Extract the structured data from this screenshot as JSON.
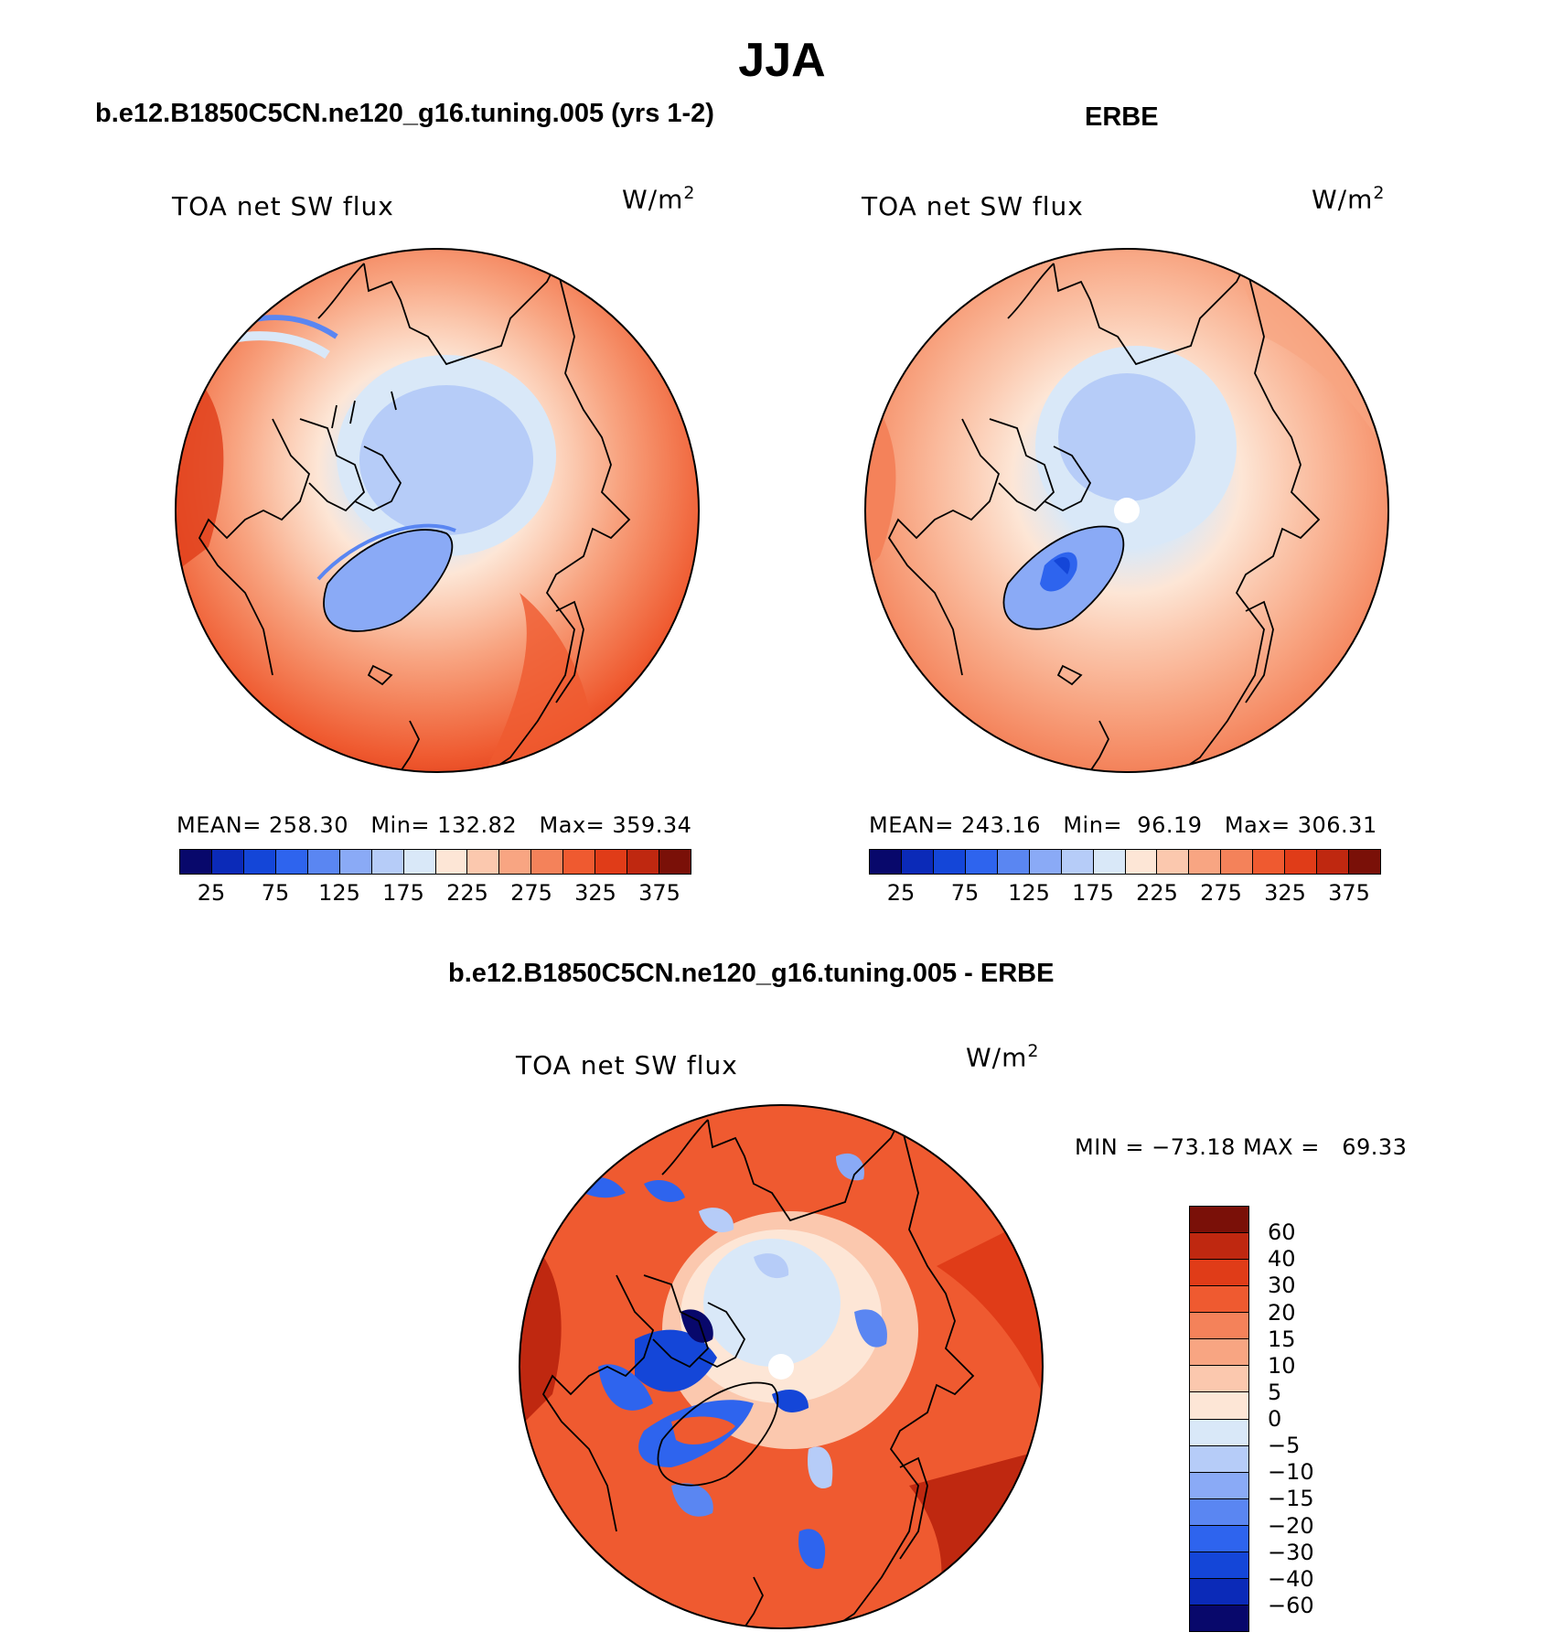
{
  "figure": {
    "title": "JJA",
    "panel_model": {
      "case_title": "b.e12.B1850C5CN.ne120_g16.tuning.005 (yrs 1-2)",
      "label": "TOA net SW flux",
      "unit_base": "W/m",
      "unit_exp": "2",
      "stats": "MEAN= 258.30   Min= 132.82   Max= 359.34"
    },
    "panel_obs": {
      "case_title": "ERBE",
      "label": "TOA net SW flux",
      "unit_base": "W/m",
      "unit_exp": "2",
      "stats": "MEAN= 243.16   Min=  96.19   Max= 306.31"
    },
    "panel_diff": {
      "case_title": "b.e12.B1850C5CN.ne120_g16.tuning.005 - ERBE",
      "label": "TOA net SW flux",
      "unit_base": "W/m",
      "unit_exp": "2",
      "stats": "MIN = −73.18 MAX =   69.33"
    }
  },
  "colorbar_abs": {
    "ticks": [
      "25",
      "75",
      "125",
      "175",
      "225",
      "275",
      "325",
      "375"
    ],
    "colors": [
      "#08086b",
      "#0b2ab8",
      "#1446d8",
      "#2e64ee",
      "#5a86f2",
      "#8aaaf6",
      "#b6ccf8",
      "#d9e8f8",
      "#fde6d6",
      "#fbc8ae",
      "#f8a582",
      "#f4825a",
      "#ef5a30",
      "#e03c18",
      "#bf2810",
      "#7a1008"
    ],
    "colors_model": [
      "#08086b",
      "#0b2ab8",
      "#1446d8",
      "#2e64ee",
      "#5a86f2",
      "#8aaaf6",
      "#b6ccf8",
      "#d9e8f8",
      "#fde6d6",
      "#fbc8ae",
      "#f8a582",
      "#f4825a",
      "#ef5a30",
      "#e03c18",
      "#bf2810",
      "#7a1008"
    ]
  },
  "colorbar_diff": {
    "ticks": [
      "60",
      "40",
      "30",
      "20",
      "15",
      "10",
      "5",
      "0",
      "−5",
      "−10",
      "−15",
      "−20",
      "−30",
      "−40",
      "−60"
    ],
    "colors": [
      "#7a1008",
      "#bf2810",
      "#e03c18",
      "#ef5a30",
      "#f4825a",
      "#f8a582",
      "#fbc8ae",
      "#fde6d6",
      "#d9e8f8",
      "#b6ccf8",
      "#8aaaf6",
      "#5a86f2",
      "#2e64ee",
      "#1446d8",
      "#0b2ab8",
      "#08086b"
    ]
  },
  "chart_data": [
    {
      "type": "heatmap",
      "projection": "north polar stereographic",
      "title": "b.e12.B1850C5CN.ne120_g16.tuning.005 (yrs 1-2)",
      "variable": "TOA net SW flux",
      "units": "W/m2",
      "season": "JJA",
      "mean": 258.3,
      "min": 132.82,
      "max": 359.34,
      "contour_levels": [
        25,
        50,
        75,
        100,
        125,
        150,
        175,
        200,
        225,
        250,
        275,
        300,
        325,
        350,
        375
      ]
    },
    {
      "type": "heatmap",
      "projection": "north polar stereographic",
      "title": "ERBE",
      "variable": "TOA net SW flux",
      "units": "W/m2",
      "season": "JJA",
      "mean": 243.16,
      "min": 96.19,
      "max": 306.31,
      "contour_levels": [
        25,
        50,
        75,
        100,
        125,
        150,
        175,
        200,
        225,
        250,
        275,
        300,
        325,
        350,
        375
      ]
    },
    {
      "type": "heatmap",
      "projection": "north polar stereographic",
      "title": "b.e12.B1850C5CN.ne120_g16.tuning.005 - ERBE",
      "variable": "TOA net SW flux",
      "units": "W/m2",
      "season": "JJA",
      "min": -73.18,
      "max": 69.33,
      "contour_levels": [
        -60,
        -40,
        -30,
        -20,
        -15,
        -10,
        -5,
        0,
        5,
        10,
        15,
        20,
        30,
        40,
        60
      ]
    }
  ]
}
